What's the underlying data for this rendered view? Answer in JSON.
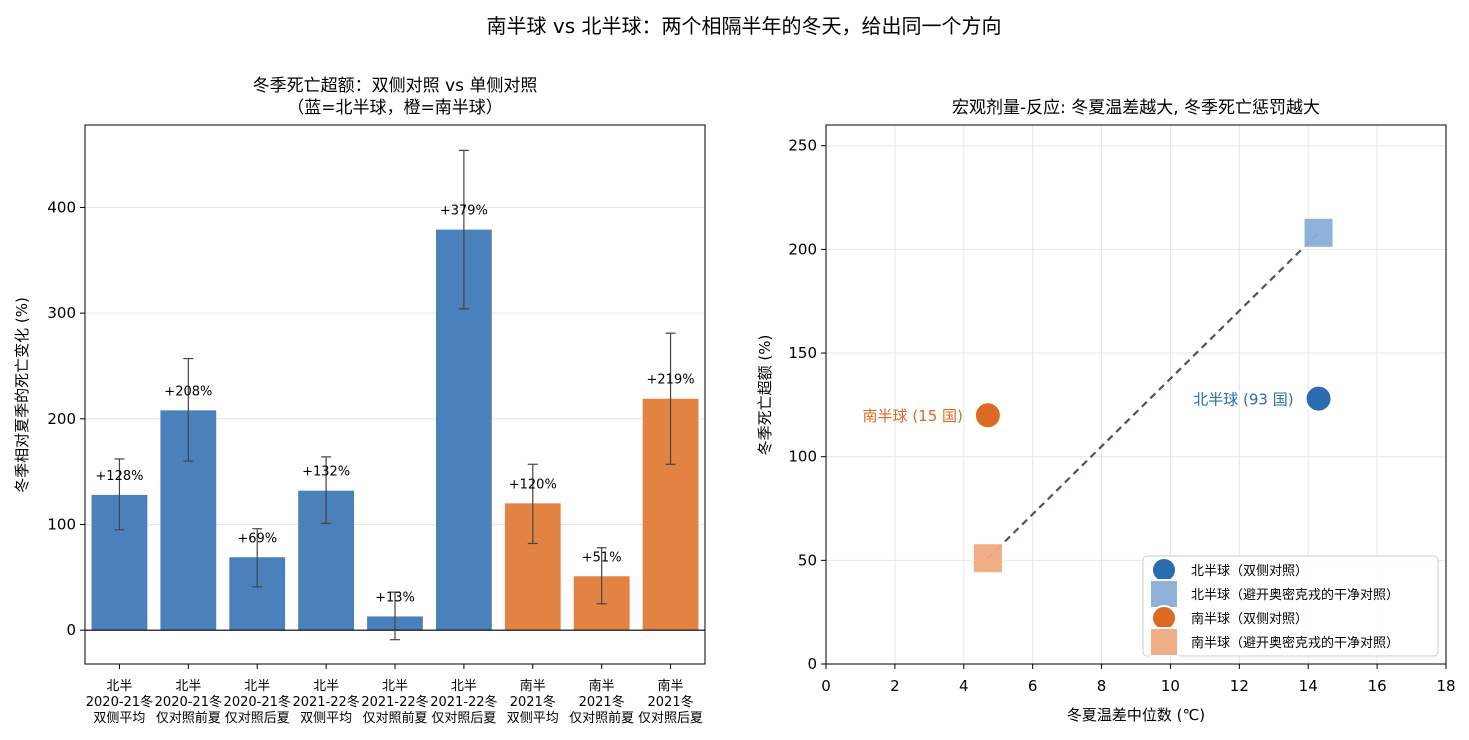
{
  "figure": {
    "suptitle": "南半球 vs 北半球：两个相隔半年的冬天，给出同一个方向"
  },
  "chart_data": [
    {
      "type": "bar",
      "title_line1": "冬季死亡超额：双侧对照 vs 单侧对照",
      "title_line2": "（蓝=北半球，橙=南半球）",
      "xlabel": "",
      "ylabel": "冬季相对夏季的死亡变化 (%)",
      "ylim": [
        -32,
        478
      ],
      "yticks": [
        0,
        100,
        200,
        300,
        400
      ],
      "grid": "y",
      "zero_line": true,
      "categories": [
        [
          "北半",
          "2020-21冬",
          "双侧平均"
        ],
        [
          "北半",
          "2020-21冬",
          "仅对照前夏"
        ],
        [
          "北半",
          "2020-21冬",
          "仅对照后夏"
        ],
        [
          "北半",
          "2021-22冬",
          "双侧平均"
        ],
        [
          "北半",
          "2021-22冬",
          "仅对照前夏"
        ],
        [
          "北半",
          "2021-22冬",
          "仅对照后夏"
        ],
        [
          "南半",
          "2021冬",
          "双侧平均"
        ],
        [
          "南半",
          "2021冬",
          "仅对照前夏"
        ],
        [
          "南半",
          "2021冬",
          "仅对照后夏"
        ]
      ],
      "values": [
        128,
        208,
        69,
        132,
        13,
        379,
        120,
        51,
        219
      ],
      "error_low": [
        95,
        160,
        41,
        101,
        -9,
        304,
        82,
        25,
        157
      ],
      "error_high": [
        162,
        257,
        96,
        164,
        36,
        454,
        157,
        78,
        281
      ],
      "value_labels": [
        "+128%",
        "+208%",
        "+69%",
        "+132%",
        "+13%",
        "+379%",
        "+120%",
        "+51%",
        "+219%"
      ],
      "hemisphere": [
        "北",
        "北",
        "北",
        "北",
        "北",
        "北",
        "南",
        "南",
        "南"
      ],
      "colors": {
        "北": "#4a80bc",
        "南": "#e28343"
      }
    },
    {
      "type": "scatter",
      "title": "宏观剂量-反应: 冬夏温差越大, 冬季死亡惩罚越大",
      "xlabel": "冬夏温差中位数 (℃)",
      "ylabel": "冬季死亡超额 (%)",
      "xlim": [
        0,
        18
      ],
      "ylim": [
        0,
        260
      ],
      "xticks": [
        0,
        2,
        4,
        6,
        8,
        10,
        12,
        14,
        16,
        18
      ],
      "yticks": [
        0,
        50,
        100,
        150,
        200,
        250
      ],
      "grid": "both",
      "legend_position": "lower-right",
      "series": [
        {
          "name": "北半球（双侧对照）",
          "marker": "circle",
          "color": "#2b6cb0",
          "x": 14.3,
          "y": 128,
          "annotation": "北半球 (93 国)"
        },
        {
          "name": "北半球（避开奥密克戎的干净对照）",
          "marker": "square",
          "color": "#8aaed6",
          "x": 14.3,
          "y": 208
        },
        {
          "name": "南半球（双侧对照）",
          "marker": "circle",
          "color": "#dd6a23",
          "x": 4.7,
          "y": 120,
          "annotation": "南半球 (15 国)"
        },
        {
          "name": "南半球（避开奥密克戎的干净对照）",
          "marker": "square",
          "color": "#f0aa80",
          "x": 4.7,
          "y": 51
        }
      ],
      "trend_line": {
        "x": [
          4.7,
          14.3
        ],
        "y": [
          51,
          208
        ],
        "style": "dashed",
        "color": "#4a5568"
      }
    }
  ]
}
